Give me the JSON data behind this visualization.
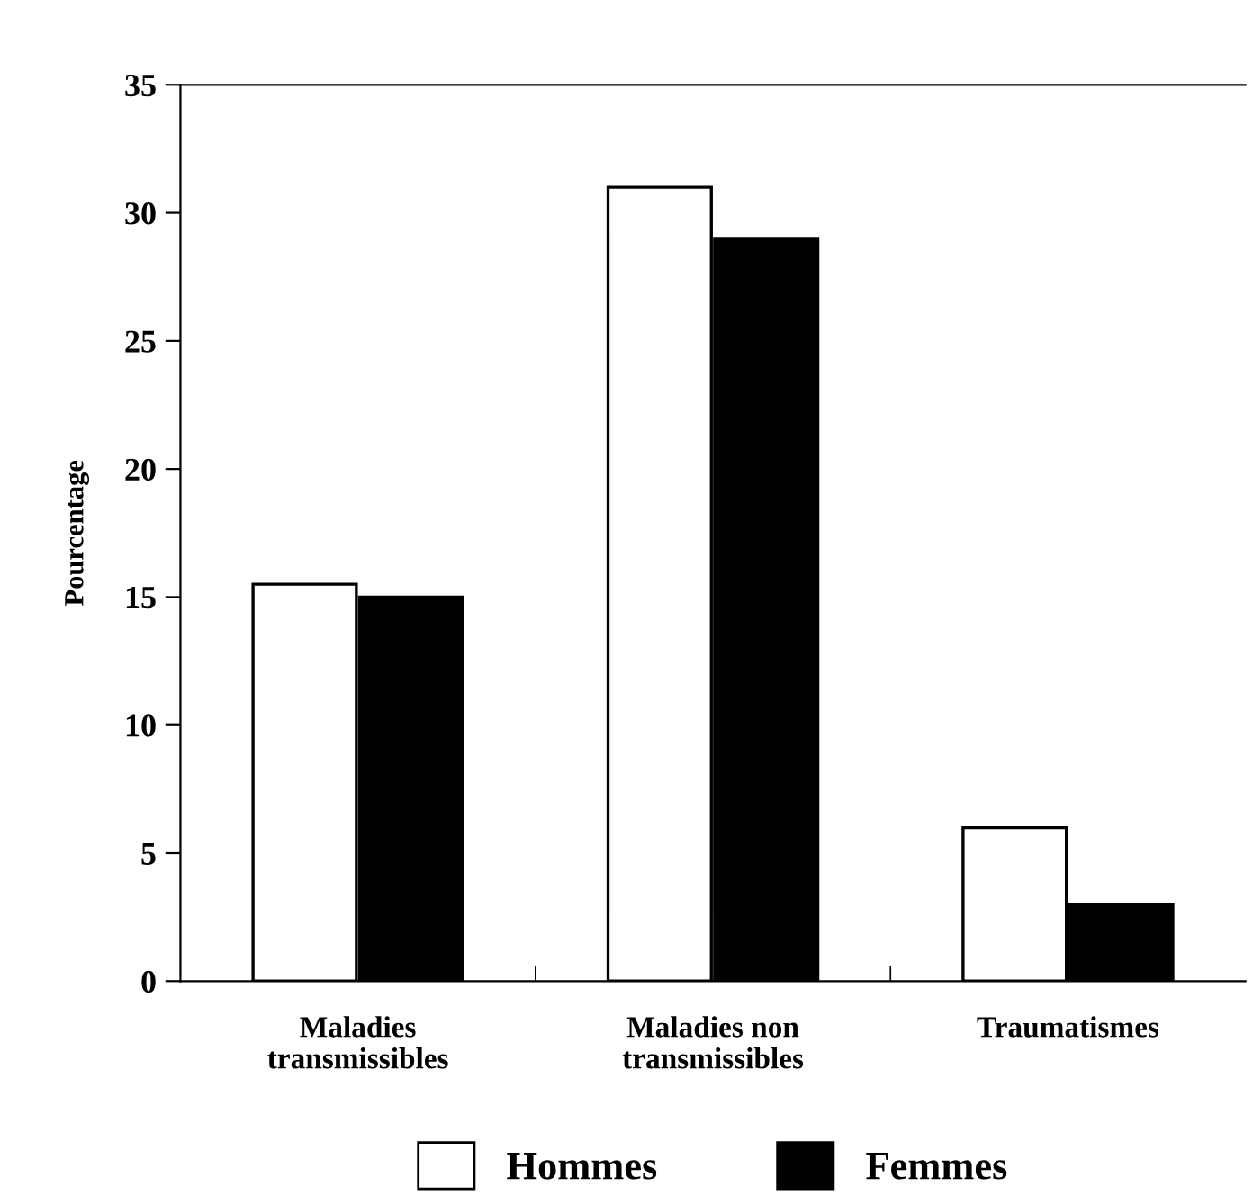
{
  "chart_data": {
    "type": "bar",
    "ylabel": "Pourcentage",
    "categories": [
      "Maladies\ntransmissibles",
      "Maladies non\ntransmissibles",
      "Traumatismes"
    ],
    "series": [
      {
        "name": "Hommes",
        "color": "#ffffff",
        "values": [
          15.5,
          31,
          6
        ]
      },
      {
        "name": "Femmes",
        "color": "#000000",
        "values": [
          15,
          29,
          3
        ]
      }
    ],
    "ylim": [
      0,
      35
    ],
    "yticks": [
      0,
      5,
      10,
      15,
      20,
      25,
      30,
      35
    ],
    "grid": false,
    "legend": "bottom"
  }
}
